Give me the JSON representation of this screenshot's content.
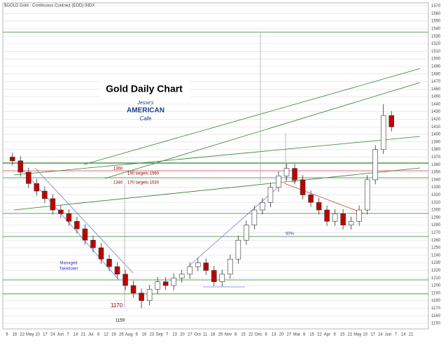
{
  "chart_data": {
    "type": "candlestick",
    "header": "$GOLD Gold - Continuous Contract (EOD) INDX",
    "title": "Gold Daily Chart",
    "logo": [
      "Jesse's",
      "AMERICAN",
      "Cafe"
    ],
    "annotations": [
      "1360",
      "1340",
      "190 targets 1560",
      "170 targets 1530",
      "70",
      "50%",
      "Managed",
      "Takedown",
      "1170",
      "1159"
    ],
    "x_labels": [
      "6",
      "16",
      "22",
      "May",
      "10",
      "17",
      "24",
      "Jun",
      "7",
      "14",
      "21",
      "Jul",
      "6",
      "12",
      "19",
      "26",
      "Aug",
      "9",
      "16",
      "23",
      "Sep",
      "7",
      "13",
      "20",
      "27",
      "Oct",
      "11",
      "18",
      "25",
      "Nov",
      "8",
      "15",
      "22",
      "Dec",
      "6",
      "13",
      "20",
      "27",
      "Mar",
      "8",
      "15",
      "22",
      "Apr",
      "6",
      "15",
      "22",
      "May",
      "10",
      "17",
      "24",
      "Jun",
      "7",
      "14",
      "21"
    ],
    "open": [
      1370,
      1365,
      1350,
      1335,
      1325,
      1315,
      1300,
      1295,
      1285,
      1275,
      1260,
      1250,
      1235,
      1225,
      1215,
      1200,
      1190,
      1180,
      1195,
      1205,
      1200,
      1210,
      1215,
      1225,
      1230,
      1220,
      1205,
      1215,
      1235,
      1260,
      1280,
      1300,
      1310,
      1330,
      1345,
      1355,
      1340,
      1320,
      1310,
      1300,
      1285,
      1295,
      1280,
      1285,
      1300,
      1340,
      1380,
      1425
    ],
    "high": [
      1376,
      1371,
      1356,
      1341,
      1331,
      1321,
      1306,
      1301,
      1291,
      1281,
      1266,
      1256,
      1241,
      1231,
      1221,
      1206,
      1196,
      1201,
      1211,
      1211,
      1216,
      1221,
      1231,
      1236,
      1236,
      1226,
      1221,
      1241,
      1266,
      1286,
      1306,
      1316,
      1336,
      1351,
      1361,
      1361,
      1346,
      1326,
      1316,
      1306,
      1301,
      1301,
      1291,
      1306,
      1346,
      1386,
      1440,
      1431
    ],
    "low": [
      1359,
      1344,
      1329,
      1319,
      1309,
      1294,
      1289,
      1279,
      1269,
      1254,
      1244,
      1229,
      1219,
      1209,
      1194,
      1184,
      1170,
      1174,
      1189,
      1194,
      1194,
      1204,
      1209,
      1219,
      1214,
      1199,
      1199,
      1209,
      1229,
      1254,
      1274,
      1294,
      1304,
      1324,
      1339,
      1334,
      1314,
      1304,
      1294,
      1279,
      1279,
      1274,
      1274,
      1279,
      1294,
      1334,
      1374,
      1404
    ],
    "close": [
      1365,
      1350,
      1335,
      1325,
      1315,
      1300,
      1295,
      1285,
      1275,
      1260,
      1250,
      1235,
      1225,
      1215,
      1200,
      1190,
      1180,
      1195,
      1205,
      1200,
      1210,
      1215,
      1225,
      1230,
      1220,
      1205,
      1215,
      1235,
      1260,
      1280,
      1300,
      1310,
      1330,
      1345,
      1355,
      1340,
      1320,
      1310,
      1300,
      1285,
      1295,
      1280,
      1285,
      1300,
      1340,
      1380,
      1425,
      1410
    ],
    "up_color": "#ffffff",
    "down_color": "#c00000",
    "ylim": [
      1150,
      1570
    ],
    "yticks": [
      1150,
      1160,
      1170,
      1180,
      1190,
      1200,
      1210,
      1220,
      1230,
      1240,
      1250,
      1260,
      1270,
      1280,
      1290,
      1300,
      1310,
      1320,
      1330,
      1340,
      1350,
      1360,
      1370,
      1380,
      1390,
      1400,
      1410,
      1420,
      1430,
      1440,
      1450,
      1460,
      1470,
      1480,
      1490,
      1500,
      1510,
      1520,
      1530,
      1540,
      1550,
      1560,
      1570
    ],
    "grid": true
  }
}
